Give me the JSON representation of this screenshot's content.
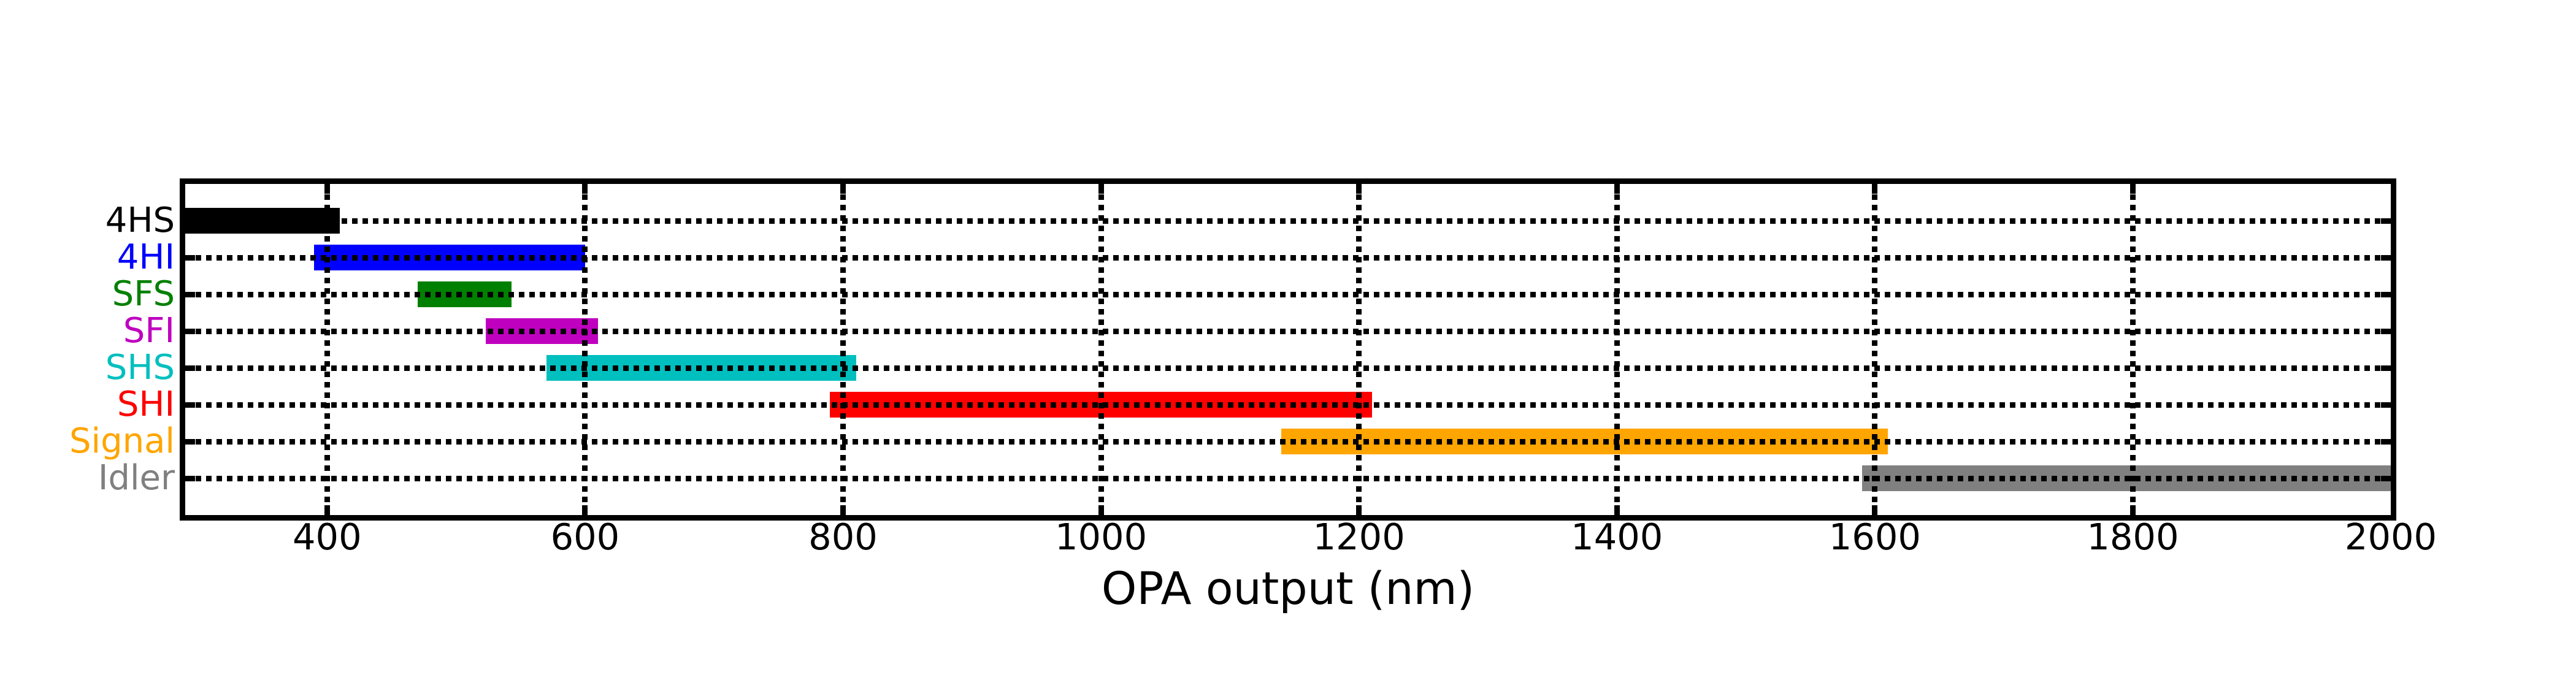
{
  "chart_data": {
    "type": "bar",
    "orientation": "horizontal",
    "title": "",
    "xlabel": "OPA output (nm)",
    "ylabel": "",
    "xlim": [
      290,
      2000
    ],
    "xticks": [
      400,
      600,
      800,
      1000,
      1200,
      1400,
      1600,
      1800,
      2000
    ],
    "grid": {
      "style": "dotted",
      "color": "#000000",
      "vertical": true,
      "horizontal": true
    },
    "background": "#ffffff",
    "axis_color": "#000000",
    "rows": [
      {
        "label": "4HS",
        "color": "#000000",
        "start_nm": 290,
        "end_nm": 410
      },
      {
        "label": "4HI",
        "color": "#0000ff",
        "start_nm": 390,
        "end_nm": 600
      },
      {
        "label": "SFS",
        "color": "#008000",
        "start_nm": 470,
        "end_nm": 543
      },
      {
        "label": "SFI",
        "color": "#bf00bf",
        "start_nm": 523,
        "end_nm": 610
      },
      {
        "label": "SHS",
        "color": "#00bfbf",
        "start_nm": 570,
        "end_nm": 810
      },
      {
        "label": "SHI",
        "color": "#ff0000",
        "start_nm": 790,
        "end_nm": 1210
      },
      {
        "label": "Signal",
        "color": "#ffa500",
        "start_nm": 1140,
        "end_nm": 1610
      },
      {
        "label": "Idler",
        "color": "#808080",
        "start_nm": 1590,
        "end_nm": 2000
      }
    ]
  }
}
